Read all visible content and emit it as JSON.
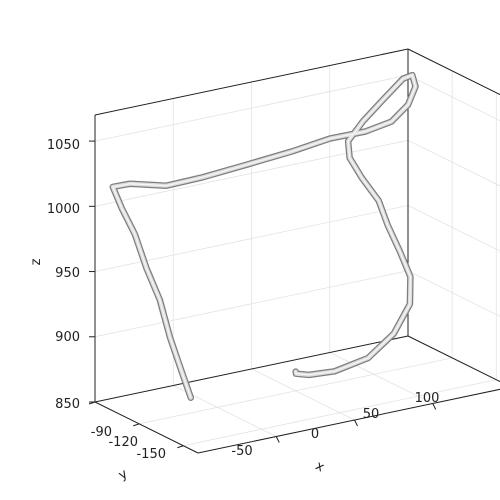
{
  "chart_data": {
    "type": "line-3d",
    "title": "",
    "xlabel": "x",
    "ylabel": "y",
    "zlabel": "z",
    "grid": true,
    "colors": {
      "tube_light": "#dcdcdc",
      "tube_dark": "#7e7e7e",
      "grid": "#e3e3e3",
      "axis": "#222222"
    },
    "x_ticks": [
      "-50",
      "0",
      "50",
      "100"
    ],
    "y_ticks": [
      "-90",
      "-120",
      "-150"
    ],
    "z_ticks": [
      "1050",
      "1000",
      "950",
      "900",
      "850"
    ],
    "series": [
      {
        "points": [
          {
            "x": -98,
            "y": -153,
            "z": 888
          },
          {
            "x": -99,
            "y": -148,
            "z": 905
          },
          {
            "x": -100,
            "y": -141,
            "z": 928
          },
          {
            "x": -99,
            "y": -133,
            "z": 952
          },
          {
            "x": -100,
            "y": -125,
            "z": 972
          },
          {
            "x": -98,
            "y": -115,
            "z": 992
          },
          {
            "x": -99,
            "y": -107,
            "z": 1008
          },
          {
            "x": -98,
            "y": -100,
            "z": 1020
          },
          {
            "x": -85,
            "y": -98,
            "z": 1018
          },
          {
            "x": -60,
            "y": -96,
            "z": 1009
          },
          {
            "x": -35,
            "y": -94,
            "z": 1008
          },
          {
            "x": -5,
            "y": -92,
            "z": 1009
          },
          {
            "x": 25,
            "y": -91,
            "z": 1011
          },
          {
            "x": 50,
            "y": -90,
            "z": 1014
          },
          {
            "x": 70,
            "y": -93,
            "z": 1016
          },
          {
            "x": 80,
            "y": -100,
            "z": 1025
          },
          {
            "x": 85,
            "y": -106,
            "z": 1040
          },
          {
            "x": 86,
            "y": -110,
            "z": 1056
          },
          {
            "x": 83,
            "y": -111,
            "z": 1066
          },
          {
            "x": 78,
            "y": -110,
            "z": 1064
          },
          {
            "x": 70,
            "y": -106,
            "z": 1049
          },
          {
            "x": 62,
            "y": -100,
            "z": 1030
          },
          {
            "x": 57,
            "y": -95,
            "z": 1013
          },
          {
            "x": 58,
            "y": -95,
            "z": 1000
          },
          {
            "x": 63,
            "y": -98,
            "z": 985
          },
          {
            "x": 70,
            "y": -102,
            "z": 968
          },
          {
            "x": 73,
            "y": -105,
            "z": 950
          },
          {
            "x": 76,
            "y": -110,
            "z": 932
          },
          {
            "x": 78,
            "y": -115,
            "z": 915
          },
          {
            "x": 73,
            "y": -120,
            "z": 898
          },
          {
            "x": 58,
            "y": -125,
            "z": 882
          },
          {
            "x": 35,
            "y": -132,
            "z": 873
          },
          {
            "x": 8,
            "y": -138,
            "z": 873
          },
          {
            "x": -15,
            "y": -145,
            "z": 880
          },
          {
            "x": -28,
            "y": -150,
            "z": 887
          },
          {
            "x": -31,
            "y": -153,
            "z": 891
          }
        ]
      }
    ]
  }
}
